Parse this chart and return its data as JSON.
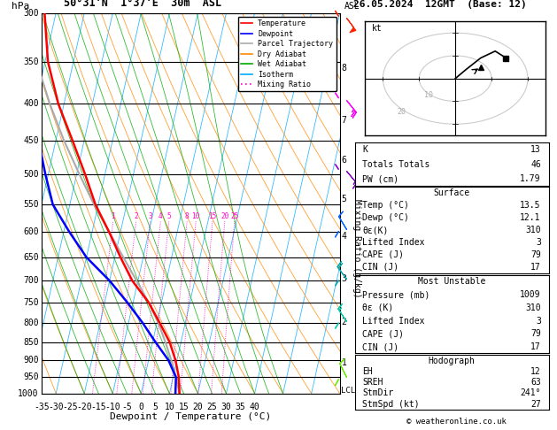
{
  "title_left": "50°31'N  1°37'E  30m  ASL",
  "title_right": "26.05.2024  12GMT  (Base: 12)",
  "xlabel": "Dewpoint / Temperature (°C)",
  "ylabel_left": "hPa",
  "pressure_levels": [
    300,
    350,
    400,
    450,
    500,
    550,
    600,
    650,
    700,
    750,
    800,
    850,
    900,
    950,
    1000
  ],
  "km_asl_labels": [
    8,
    7,
    6,
    5,
    4,
    3,
    2,
    1
  ],
  "km_asl_pressures": [
    357,
    421,
    478,
    540,
    608,
    695,
    798,
    908
  ],
  "mixing_ratio_labels": [
    "1",
    "2",
    "3",
    "4",
    "5",
    "8",
    "10",
    "15",
    "20",
    "25"
  ],
  "mixing_ratio_values": [
    1,
    2,
    3,
    4,
    5,
    8,
    10,
    15,
    20,
    25
  ],
  "temp_profile_T": [
    13.5,
    12.0,
    9.5,
    6.0,
    1.0,
    -4.5,
    -12.0,
    -18.0,
    -24.0,
    -31.0,
    -37.0,
    -44.0,
    -52.0,
    -59.0,
    -64.0
  ],
  "temp_profile_P": [
    1000,
    950,
    900,
    850,
    800,
    750,
    700,
    650,
    600,
    550,
    500,
    450,
    400,
    350,
    300
  ],
  "dewp_profile_T": [
    12.1,
    11.0,
    7.0,
    1.0,
    -5.0,
    -12.0,
    -20.0,
    -30.0,
    -38.0,
    -46.0,
    -51.0,
    -56.0,
    -62.0,
    -67.0,
    -72.0
  ],
  "dewp_profile_P": [
    1000,
    950,
    900,
    850,
    800,
    750,
    700,
    650,
    600,
    550,
    500,
    450,
    400,
    350,
    300
  ],
  "parcel_T": [
    13.5,
    11.0,
    8.0,
    4.5,
    0.5,
    -4.5,
    -10.5,
    -17.0,
    -24.0,
    -31.5,
    -39.0,
    -47.0,
    -55.0,
    -63.0,
    -70.0
  ],
  "parcel_P": [
    1000,
    950,
    900,
    850,
    800,
    750,
    700,
    650,
    600,
    550,
    500,
    450,
    400,
    350,
    300
  ],
  "xmin": -35,
  "xmax": 40,
  "skew_factor": 30.0,
  "legend_entries": [
    "Temperature",
    "Dewpoint",
    "Parcel Trajectory",
    "Dry Adiabat",
    "Wet Adiabat",
    "Isotherm",
    "Mixing Ratio"
  ],
  "legend_colors": [
    "#ff0000",
    "#0000ff",
    "#aaaaaa",
    "#ff8800",
    "#00aa00",
    "#00aaff",
    "#ff00cc"
  ],
  "stats_K": 13,
  "stats_TT": 46,
  "stats_PW": 1.79,
  "surf_temp": "13.5",
  "surf_dewp": "12.1",
  "surf_theta_e": "310",
  "surf_LI": "3",
  "surf_CAPE": "79",
  "surf_CIN": "17",
  "mu_pres": "1009",
  "mu_theta_e": "310",
  "mu_LI": "3",
  "mu_CAPE": "79",
  "mu_CIN": "17",
  "hodo_EH": "12",
  "hodo_SREH": "63",
  "hodo_StmDir": "241°",
  "hodo_StmSpd": "27",
  "copyright": "© weatheronline.co.uk",
  "bg_color": "#ffffff",
  "isotherm_color": "#00aaff",
  "dryadiabat_color": "#ff8800",
  "wetadiabat_color": "#00aa00",
  "mixingratio_color": "#ff00cc",
  "temp_color": "#ff0000",
  "dewp_color": "#0000ff",
  "parcel_color": "#aaaaaa",
  "lcl_pressure": 992,
  "wind_barbs": [
    {
      "p": 305,
      "color": "#ff2200",
      "u": -15,
      "v": 20
    },
    {
      "p": 395,
      "color": "#ff00ff",
      "u": -8,
      "v": 10
    },
    {
      "p": 495,
      "color": "#8800cc",
      "u": -5,
      "v": 6
    },
    {
      "p": 595,
      "color": "#0066ff",
      "u": 3,
      "v": -5
    },
    {
      "p": 695,
      "color": "#00aaaa",
      "u": 6,
      "v": -8
    },
    {
      "p": 795,
      "color": "#00ccaa",
      "u": 4,
      "v": -6
    },
    {
      "p": 950,
      "color": "#66ee00",
      "u": 2,
      "v": -4
    }
  ]
}
